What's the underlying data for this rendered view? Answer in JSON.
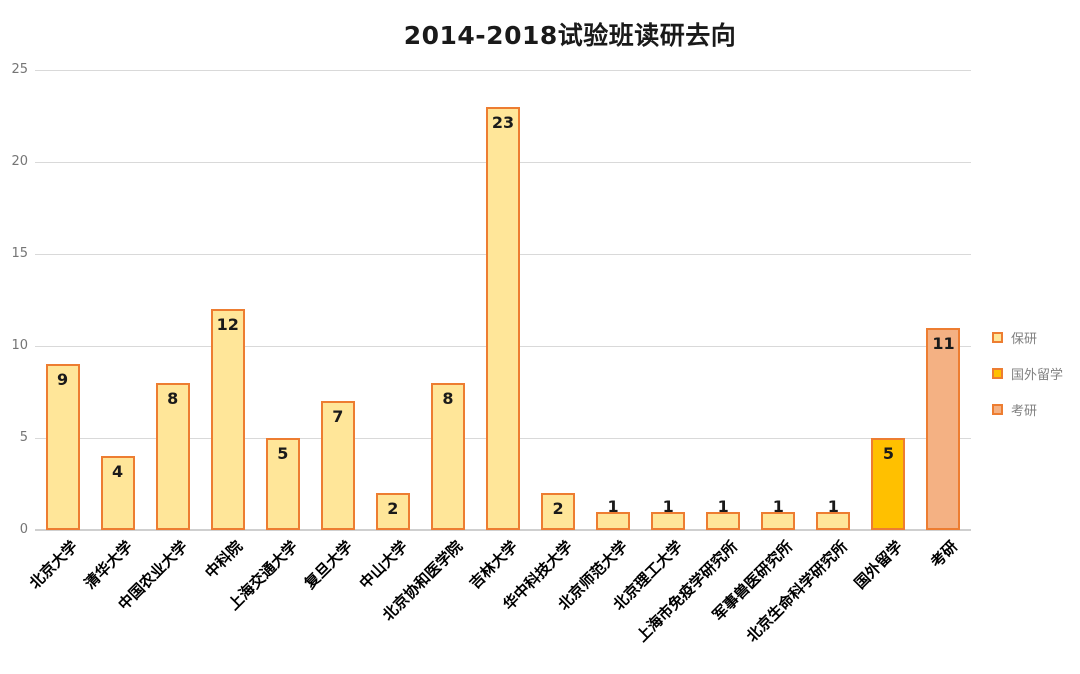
{
  "chart_data": {
    "type": "bar",
    "title": "2014-2018试验班读研去向",
    "categories": [
      "北京大学",
      "清华大学",
      "中国农业大学",
      "中科院",
      "上海交通大学",
      "复旦大学",
      "中山大学",
      "北京协和医学院",
      "吉林大学",
      "华中科技大学",
      "北京师范大学",
      "北京理工大学",
      "上海市免疫学研究所",
      "军事兽医研究所",
      "北京生命科学研究所",
      "国外留学",
      "考研"
    ],
    "values": [
      9,
      4,
      8,
      12,
      5,
      7,
      2,
      8,
      23,
      2,
      1,
      1,
      1,
      1,
      1,
      5,
      11
    ],
    "point_series": [
      "保研",
      "保研",
      "保研",
      "保研",
      "保研",
      "保研",
      "保研",
      "保研",
      "保研",
      "保研",
      "保研",
      "保研",
      "保研",
      "保研",
      "保研",
      "国外留学",
      "考研"
    ],
    "xlabel": "",
    "ylabel": "",
    "ylim": [
      0,
      25
    ],
    "y_ticks": [
      0,
      5,
      10,
      15,
      20,
      25
    ],
    "grid": true,
    "data_labels": true,
    "legend_position": "right",
    "legend": [
      {
        "label": "保研",
        "fill": "#FFE699",
        "border": "#ED7D31"
      },
      {
        "label": "国外留学",
        "fill": "#FFC000",
        "border": "#ED7D31"
      },
      {
        "label": "考研",
        "fill": "#F4B183",
        "border": "#ED7D31"
      }
    ]
  },
  "colors": {
    "grid": "#D9D9D9",
    "axis_line": "#CFCFCF",
    "tick_label": "#757575",
    "legend_text": "#808080",
    "title_text": "#1A1A1A",
    "data_label": "#1A1A1A",
    "category_label": "#000000",
    "background": "#FFFFFF"
  }
}
